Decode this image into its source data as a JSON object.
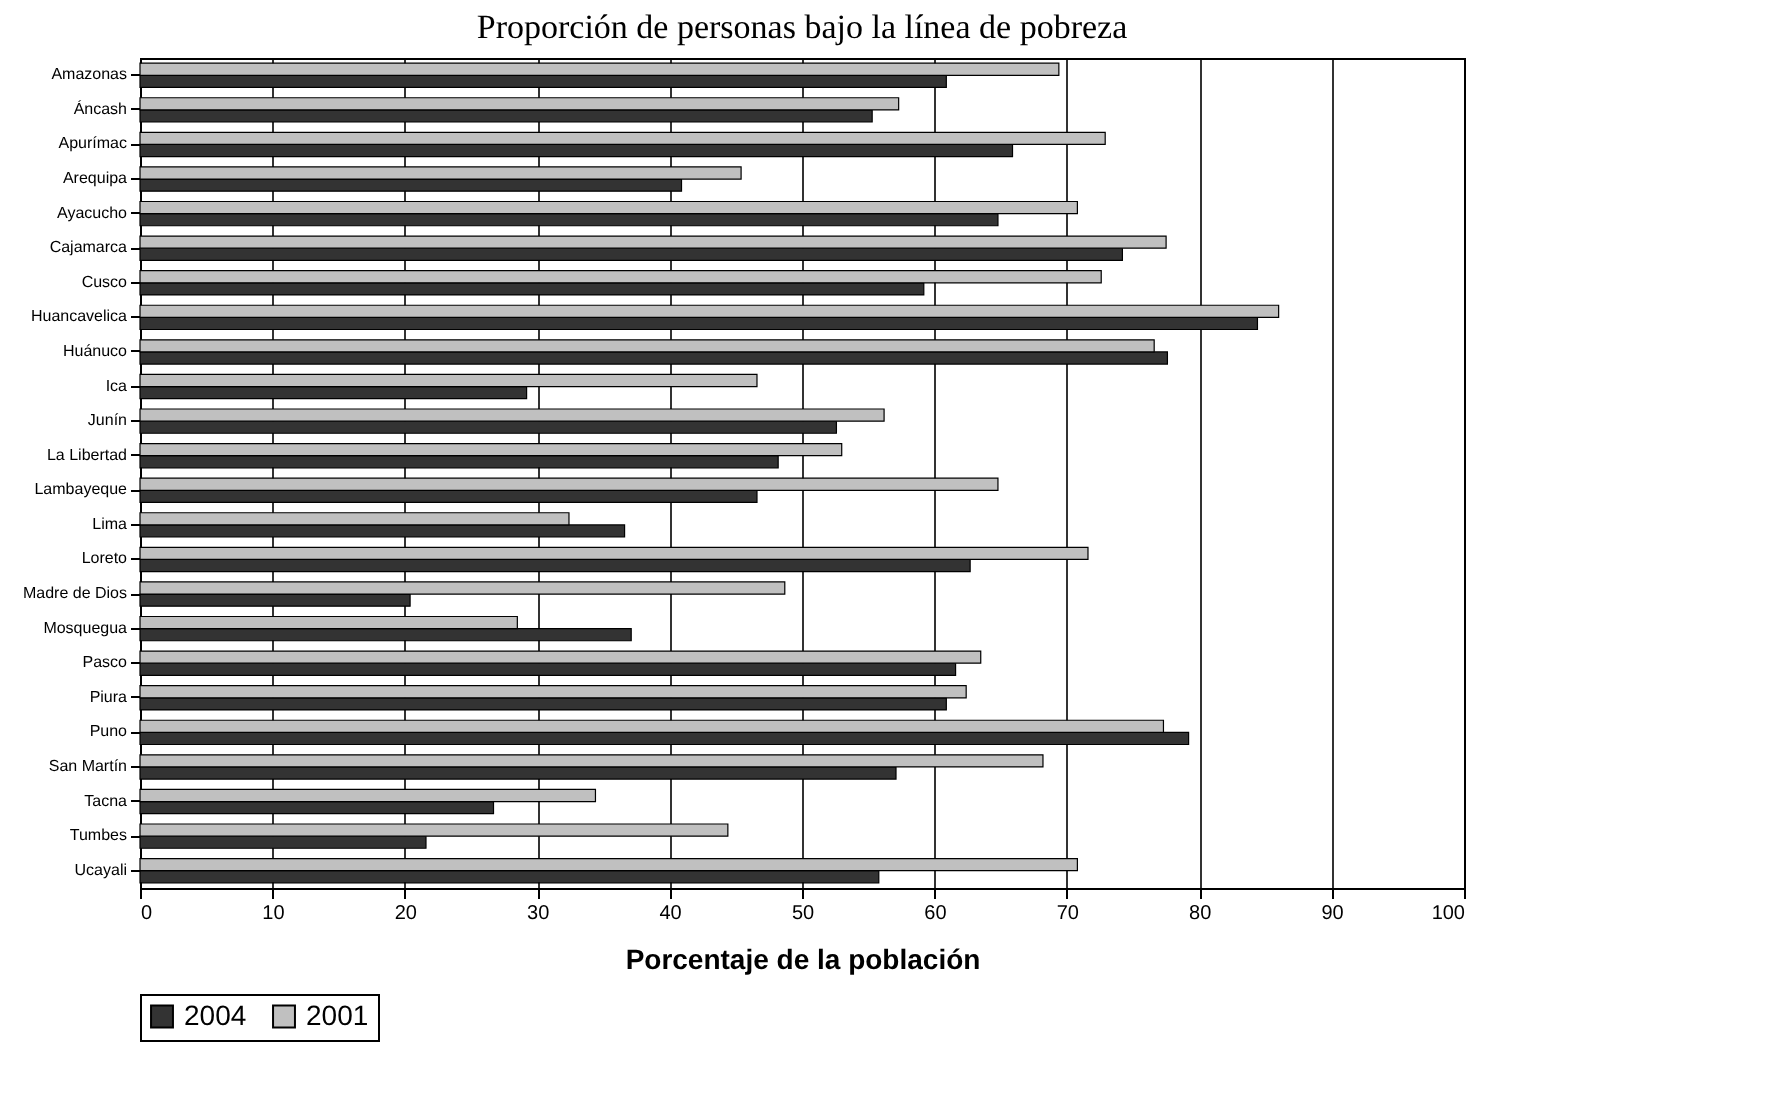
{
  "chart_data": {
    "type": "bar",
    "orientation": "horizontal",
    "title": "Proporción de personas bajo la línea de pobreza",
    "xlabel": "Porcentaje de la población",
    "categories": [
      "Amazonas",
      "Áncash",
      "Apurímac",
      "Arequipa",
      "Ayacucho",
      "Cajamarca",
      "Cusco",
      "Huancavelica",
      "Huánuco",
      "Ica",
      "Junín",
      "La Libertad",
      "Lambayeque",
      "Lima",
      "Loreto",
      "Madre de Dios",
      "Mosquegua",
      "Pasco",
      "Piura",
      "Puno",
      "San Martín",
      "Tacna",
      "Tumbes",
      "Ucayali"
    ],
    "series": [
      {
        "name": "2004",
        "color": "#333333",
        "values": [
          60.9,
          55.3,
          65.9,
          40.9,
          64.8,
          74.2,
          59.2,
          84.4,
          77.6,
          29.2,
          52.6,
          48.2,
          46.6,
          36.6,
          62.7,
          20.4,
          37.1,
          61.6,
          60.9,
          79.2,
          57.1,
          26.7,
          21.6,
          55.8
        ]
      },
      {
        "name": "2001",
        "color": "#c0c0c0",
        "values": [
          69.4,
          57.3,
          72.9,
          45.4,
          70.8,
          77.5,
          72.6,
          86.0,
          76.6,
          46.6,
          56.2,
          53.0,
          64.8,
          32.4,
          71.6,
          48.7,
          28.5,
          63.5,
          62.4,
          77.3,
          68.2,
          34.4,
          44.4,
          70.8
        ]
      }
    ],
    "xlim": [
      0,
      100
    ],
    "xticks": [
      0,
      10,
      20,
      30,
      40,
      50,
      60,
      70,
      80,
      90,
      100
    ],
    "grid": "x",
    "legend": "bottom"
  }
}
